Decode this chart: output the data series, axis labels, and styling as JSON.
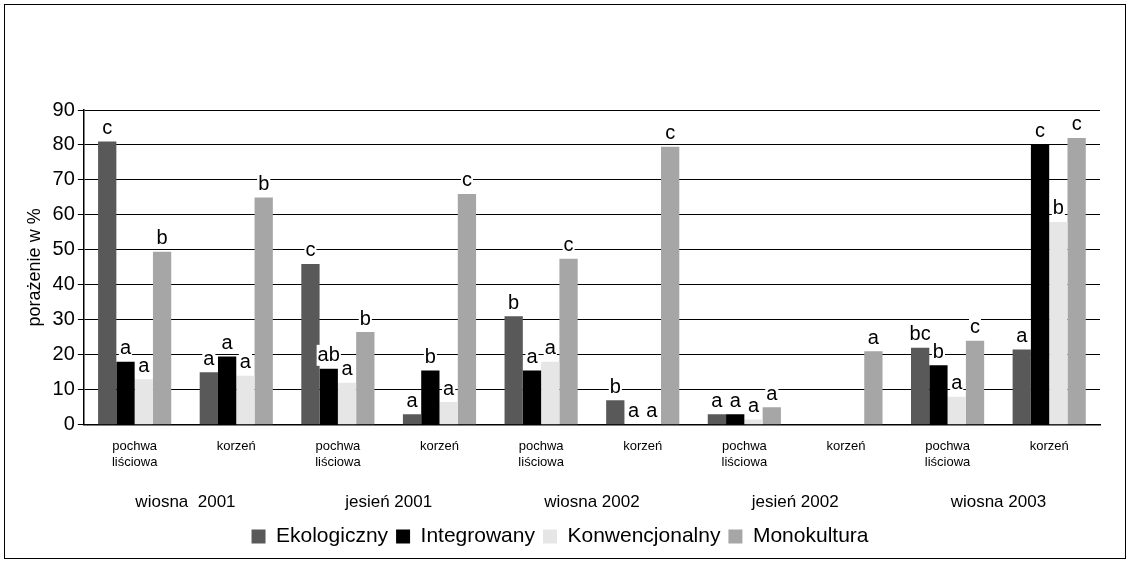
{
  "chart_data": {
    "type": "bar",
    "ylabel": "porażenie w %",
    "categories": [
      "pochwa liściowa",
      "korzeń",
      "pochwa liściowa",
      "korzeń",
      "pochwa liściowa",
      "korzeń",
      "pochwa liściowa",
      "korzeń",
      "pochwa liściowa",
      "korzeń"
    ],
    "series": [
      {
        "name": "Ekologiczny",
        "color": "#595959",
        "values": [
          81,
          15,
          46,
          3,
          31,
          7,
          3,
          0,
          22,
          21.5
        ],
        "value_labels": [
          "c",
          "a",
          "c",
          "a",
          "b",
          "b",
          "a",
          null,
          "bc",
          "a"
        ]
      },
      {
        "name": "Integrowany",
        "color": "#000000",
        "values": [
          18,
          19.5,
          16,
          15.5,
          15.5,
          0,
          3,
          0,
          17,
          80
        ],
        "value_labels": [
          "a",
          "a",
          "ab",
          "b",
          "a",
          "a",
          "a",
          null,
          "b",
          "c"
        ]
      },
      {
        "name": "Konwencjonalny",
        "color": "#e6e6e6",
        "values": [
          13,
          14,
          12,
          6.5,
          18,
          0,
          1.5,
          0,
          8,
          58
        ],
        "value_labels": [
          "a",
          "a",
          "a",
          "a",
          "a",
          "a",
          "a",
          null,
          "a",
          "b"
        ]
      },
      {
        "name": "Monokultura",
        "color": "#a6a6a6",
        "values": [
          49.5,
          65,
          26.5,
          66,
          47.5,
          79.5,
          5,
          21,
          24,
          82
        ],
        "value_labels": [
          "b",
          "b",
          "b",
          "c",
          "c",
          "c",
          "a",
          "a",
          "c",
          "c"
        ]
      }
    ],
    "ylim": [
      0,
      90
    ],
    "yticks": [
      0,
      10,
      20,
      30,
      40,
      50,
      60,
      70,
      80,
      90
    ],
    "grid": "y",
    "legend": "bottom",
    "annotations": [
      "wiosna  2001",
      "jesień 2001",
      "wiosna 2002",
      "jesień 2002",
      "wiosna 2003"
    ]
  }
}
